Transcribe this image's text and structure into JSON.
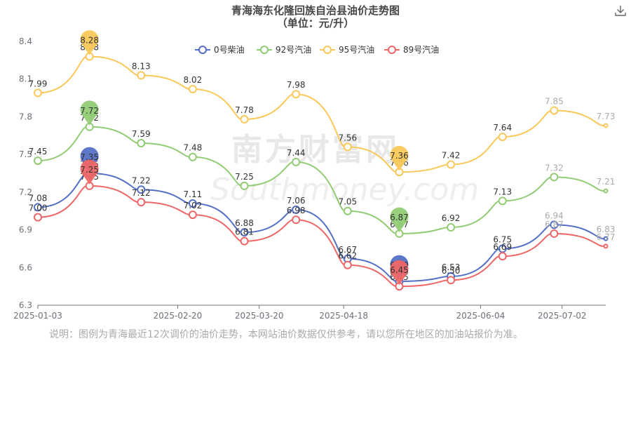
{
  "chart_data": {
    "type": "line",
    "title": "青海海东化隆回族自治县油价走势图",
    "subtitle": "（单位：元/升）",
    "x": [
      "2025-01-03",
      "2025-01-17",
      "2025-02-07",
      "2025-03-05",
      "2025-03-20",
      "2025-04-03",
      "2025-04-18",
      "2025-05-13",
      "2025-05-28",
      "2025-06-18",
      "2025-07-02",
      "2025-07-17"
    ],
    "x_tick_labels": [
      "2025-01-03",
      "2025-02-20",
      "2025-03-20",
      "2025-04-18",
      "2025-06-04",
      "2025-07-02"
    ],
    "y_tick_labels": [
      "8.4",
      "8.1",
      "7.8",
      "7.5",
      "7.2",
      "6.9",
      "6.6",
      "6.3"
    ],
    "ylim": [
      6.3,
      8.4
    ],
    "legend_position": "top-center",
    "grid": false,
    "series": [
      {
        "name": "0号柴油",
        "color": "#5470c6",
        "values": [
          7.08,
          7.35,
          7.22,
          7.11,
          6.88,
          7.06,
          6.67,
          6.49,
          6.53,
          6.75,
          6.94,
          6.83
        ],
        "max_label": "7.35",
        "min_label": "6.49"
      },
      {
        "name": "92号汽油",
        "color": "#91cc75",
        "values": [
          7.45,
          7.72,
          7.59,
          7.48,
          7.25,
          7.44,
          7.05,
          6.87,
          6.92,
          7.13,
          7.32,
          7.21
        ],
        "max_label": "7.72",
        "min_label": "6.87"
      },
      {
        "name": "95号汽油",
        "color": "#fac858",
        "values": [
          7.99,
          8.28,
          8.13,
          8.02,
          7.78,
          7.98,
          7.56,
          7.36,
          7.42,
          7.64,
          7.85,
          7.73
        ],
        "max_label": "8.28",
        "min_label": "7.36"
      },
      {
        "name": "89号汽油",
        "color": "#ee6666",
        "values": [
          7.0,
          7.25,
          7.12,
          7.02,
          6.81,
          6.98,
          6.62,
          6.45,
          6.5,
          6.69,
          6.87,
          6.77
        ],
        "max_label": "7.25",
        "min_label": "6.45"
      }
    ],
    "watermark": "南方财富网",
    "watermark_url": "Southmoney.com"
  },
  "note": "说明：图例为青海最近12次调价的油价走势，本网站油价数据仅供参考，请以您所在地区的加油站报价为准。",
  "toolbar": {
    "download_icon": "download-icon"
  }
}
